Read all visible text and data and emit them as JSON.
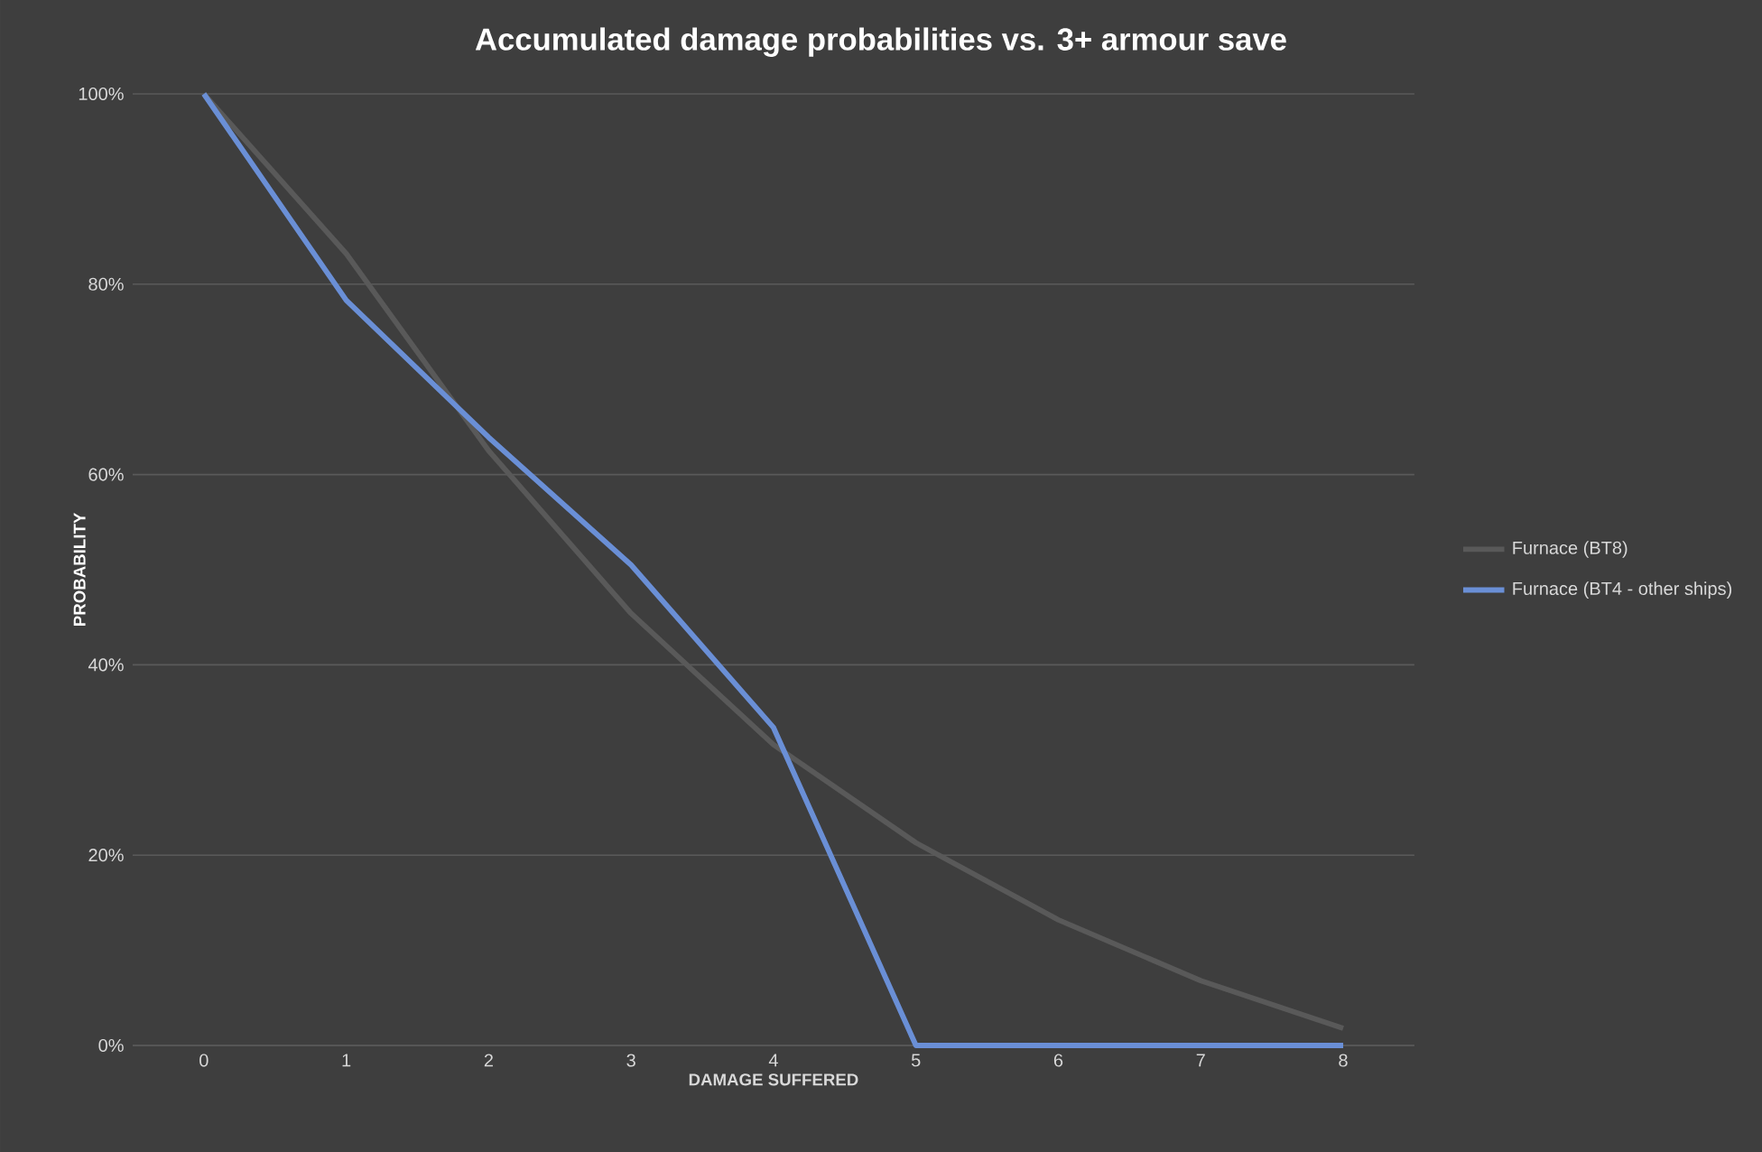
{
  "chart_data": {
    "type": "line",
    "title": "Accumulated damage probabilities vs. 3+ armour save",
    "xlabel": "DAMAGE SUFFERED",
    "ylabel": "PROBABILITY",
    "categories": [
      "0",
      "1",
      "2",
      "3",
      "4",
      "5",
      "6",
      "7",
      "8"
    ],
    "series": [
      {
        "name": "Furnace (BT8)",
        "color": "#595959",
        "values": [
          100,
          83.2,
          62.5,
          45.4,
          31.6,
          21.3,
          13.2,
          6.8,
          1.8
        ]
      },
      {
        "name": "Furnace (BT4 - other ships)",
        "color": "#6a8fd6",
        "values": [
          100,
          78.3,
          63.9,
          50.5,
          33.4,
          0,
          0,
          0,
          0
        ]
      }
    ],
    "ylim": [
      0,
      100
    ],
    "yticks": [
      {
        "value": 0,
        "label": "0%"
      },
      {
        "value": 20,
        "label": "20%"
      },
      {
        "value": 40,
        "label": "40%"
      },
      {
        "value": 60,
        "label": "60%"
      },
      {
        "value": 80,
        "label": "80%"
      },
      {
        "value": 100,
        "label": "100%"
      }
    ],
    "grid": "y",
    "legend": "right",
    "marker": "none",
    "line_style": "solid"
  }
}
